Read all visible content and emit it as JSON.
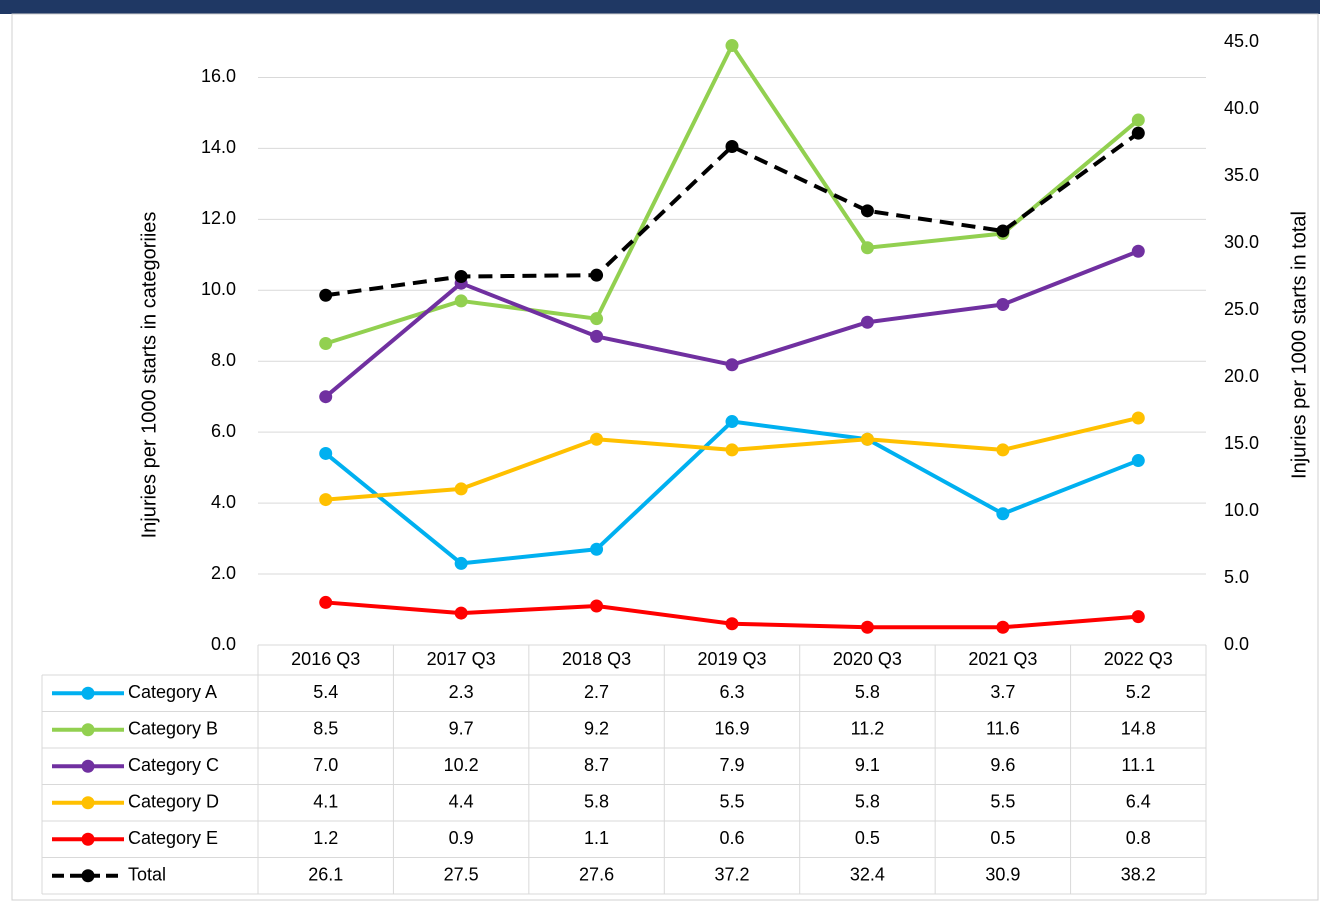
{
  "chart_data": {
    "type": "line",
    "y_label": "Injuries per 1000 starts in categoriies",
    "y2_label": "Injuries per 1000 starts in total",
    "categories": [
      "2016 Q3",
      "2017 Q3",
      "2018 Q3",
      "2019 Q3",
      "2020 Q3",
      "2021 Q3",
      "2022 Q3"
    ],
    "ylim": [
      0,
      17
    ],
    "yticks": [
      {
        "value": 0,
        "label": "0.0"
      },
      {
        "value": 2,
        "label": "2.0"
      },
      {
        "value": 4,
        "label": "4.0"
      },
      {
        "value": 6,
        "label": "6.0"
      },
      {
        "value": 8,
        "label": "8.0"
      },
      {
        "value": 10,
        "label": "10.0"
      },
      {
        "value": 12,
        "label": "12.0"
      },
      {
        "value": 14,
        "label": "14.0"
      },
      {
        "value": 16,
        "label": "16.0"
      }
    ],
    "y2lim": [
      0,
      45
    ],
    "y2ticks": [
      {
        "value": 0,
        "label": "0.0"
      },
      {
        "value": 5,
        "label": "5.0"
      },
      {
        "value": 10,
        "label": "10.0"
      },
      {
        "value": 15,
        "label": "15.0"
      },
      {
        "value": 20,
        "label": "20.0"
      },
      {
        "value": 25,
        "label": "25.0"
      },
      {
        "value": 30,
        "label": "30.0"
      },
      {
        "value": 35,
        "label": "35.0"
      },
      {
        "value": 40,
        "label": "40.0"
      },
      {
        "value": 45,
        "label": "45.0"
      }
    ],
    "grid": true,
    "series": [
      {
        "name": "Category A",
        "color": "#00b0f0",
        "values": [
          5.4,
          2.3,
          2.7,
          6.3,
          5.8,
          3.7,
          5.2
        ],
        "value_labels": [
          "5.4",
          "2.3",
          "2.7",
          "6.3",
          "5.8",
          "3.7",
          "5.2"
        ]
      },
      {
        "name": "Category B",
        "color": "#92d050",
        "values": [
          8.5,
          9.7,
          9.2,
          16.9,
          11.2,
          11.6,
          14.8
        ],
        "value_labels": [
          "8.5",
          "9.7",
          "9.2",
          "16.9",
          "11.2",
          "11.6",
          "14.8"
        ]
      },
      {
        "name": "Category C",
        "color": "#7030a0",
        "values": [
          7.0,
          10.2,
          8.7,
          7.9,
          9.1,
          9.6,
          11.1
        ],
        "value_labels": [
          "7.0",
          "10.2",
          "8.7",
          "7.9",
          "9.1",
          "9.6",
          "11.1"
        ]
      },
      {
        "name": "Category D",
        "color": "#ffc000",
        "values": [
          4.1,
          4.4,
          5.8,
          5.5,
          5.8,
          5.5,
          6.4
        ],
        "value_labels": [
          "4.1",
          "4.4",
          "5.8",
          "5.5",
          "5.8",
          "5.5",
          "6.4"
        ]
      },
      {
        "name": "Category E",
        "color": "#ff0000",
        "values": [
          1.2,
          0.9,
          1.1,
          0.6,
          0.5,
          0.5,
          0.8
        ],
        "value_labels": [
          "1.2",
          "0.9",
          "1.1",
          "0.6",
          "0.5",
          "0.5",
          "0.8"
        ]
      },
      {
        "name": "Total",
        "color": "#000000",
        "dashed": true,
        "axis": "y2",
        "values": [
          26.1,
          27.5,
          27.6,
          37.2,
          32.4,
          30.9,
          38.2
        ],
        "value_labels": [
          "26.1",
          "27.5",
          "27.6",
          "37.2",
          "32.4",
          "30.9",
          "38.2"
        ]
      }
    ]
  }
}
